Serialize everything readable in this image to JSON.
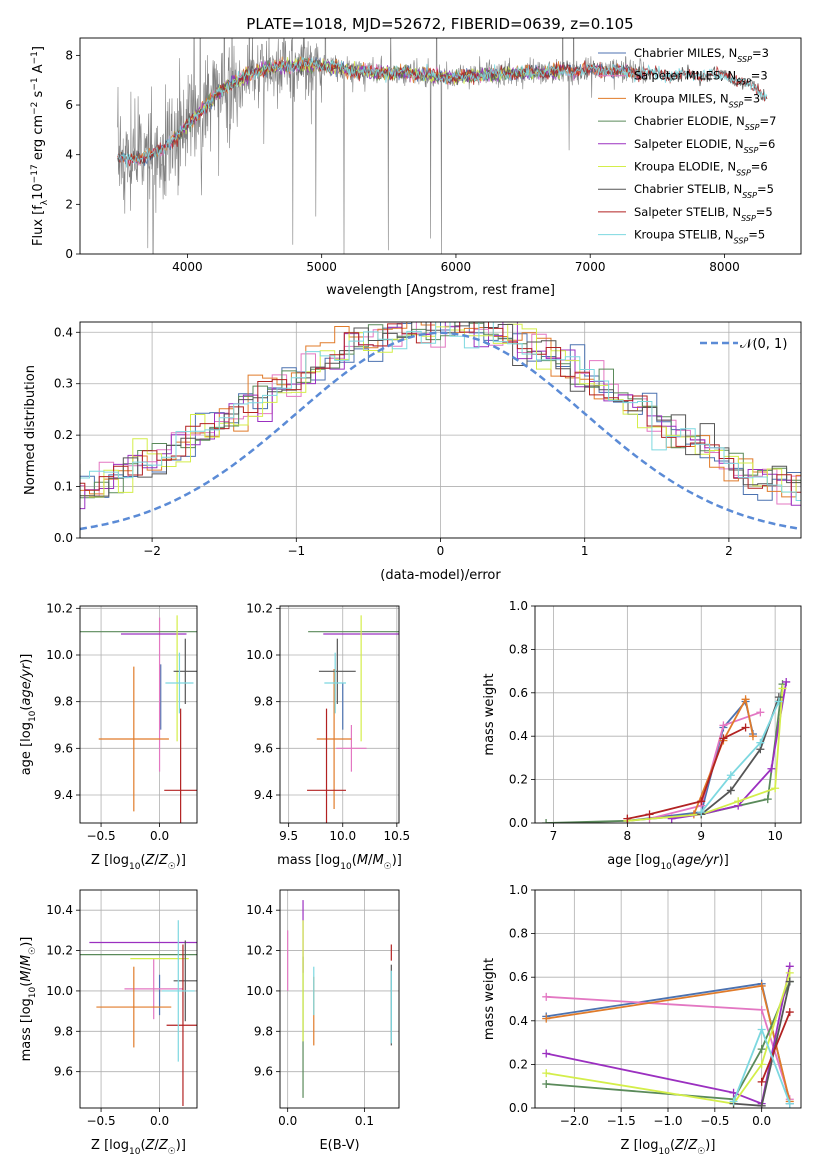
{
  "figure": {
    "title": "PLATE=1018, MJD=52672, FIBERID=0639, z=0.105"
  },
  "colors": {
    "Chabrier MILES": "#4c72b0",
    "Salpeter MILES": "#e377c2",
    "Kroupa MILES": "#e07b2a",
    "Chabrier ELODIE": "#5a8a5a",
    "Salpeter ELODIE": "#9b30c0",
    "Kroupa ELODIE": "#d4ee4a",
    "Chabrier STELIB": "#555555",
    "Salpeter STELIB": "#b22222",
    "Kroupa STELIB": "#7dd8e0",
    "data": "#808080",
    "gaussian": "#5b8bd6"
  },
  "chart_data": [
    {
      "id": "spectrum",
      "type": "line",
      "xlabel": "wavelength [Angstrom, rest frame]",
      "ylabel": "Flux [f_λ 10^-17 erg cm^-2 s^-1 A^-1]",
      "xlim": [
        3200,
        8570
      ],
      "ylim": [
        0,
        8.7
      ],
      "xticks": [
        4000,
        5000,
        6000,
        7000,
        8000
      ],
      "yticks": [
        0,
        2,
        4,
        6,
        8
      ],
      "grid": false,
      "legend_position": "upper-right",
      "legend": [
        {
          "name": "Chabrier MILES",
          "nssp": "3"
        },
        {
          "name": "Salpeter MILES",
          "nssp": "3"
        },
        {
          "name": "Kroupa MILES",
          "nssp": "3"
        },
        {
          "name": "Chabrier ELODIE",
          "nssp": "7"
        },
        {
          "name": "Salpeter ELODIE",
          "nssp": "6"
        },
        {
          "name": "Kroupa ELODIE",
          "nssp": "6"
        },
        {
          "name": "Chabrier STELIB",
          "nssp": "5"
        },
        {
          "name": "Salpeter STELIB",
          "nssp": "5"
        },
        {
          "name": "Kroupa STELIB",
          "nssp": "5"
        }
      ],
      "continuum": {
        "x": [
          3480,
          3550,
          3650,
          3750,
          3850,
          3950,
          4050,
          4150,
          4250,
          4400,
          4600,
          4800,
          5000,
          5200,
          5400,
          5600,
          5800,
          6000,
          6200,
          6400,
          6600,
          6800,
          7000,
          7200,
          7400,
          7600,
          7800,
          8000,
          8200,
          8300
        ],
        "y": [
          3.9,
          3.8,
          3.9,
          4.0,
          4.4,
          4.9,
          5.5,
          6.0,
          6.6,
          7.1,
          7.5,
          7.6,
          7.6,
          7.4,
          7.3,
          7.3,
          7.2,
          7.1,
          7.2,
          7.3,
          7.3,
          7.4,
          7.4,
          7.4,
          7.3,
          7.2,
          7.2,
          7.2,
          6.8,
          6.4
        ]
      }
    },
    {
      "id": "residuals",
      "type": "line",
      "xlabel": "(data-model)/error",
      "ylabel": "Normed distribution",
      "xlim": [
        -2.5,
        2.5
      ],
      "ylim": [
        0,
        0.42
      ],
      "xticks": [
        -2,
        -1,
        0,
        1,
        2
      ],
      "yticks": [
        0.0,
        0.1,
        0.2,
        0.3,
        0.4
      ],
      "grid": true,
      "legend_position": "upper-right",
      "legend": [
        {
          "name": "𝒩(0, 1)"
        }
      ],
      "gaussian": {
        "mean": 0,
        "sigma": 1
      }
    },
    {
      "id": "age_vs_Z",
      "type": "scatter",
      "xlabel": "Z [log10(Z/Z☉)]",
      "ylabel": "age  [log10(age/yr)]",
      "xlim": [
        -0.68,
        0.32
      ],
      "ylim": [
        9.28,
        10.21
      ],
      "xticks": [
        -0.5,
        0.0
      ],
      "yticks": [
        9.4,
        9.6,
        9.8,
        10.0,
        10.2
      ],
      "grid": true,
      "points": [
        {
          "model": "Chabrier MILES",
          "x": 0.01,
          "xerr": 0.0,
          "y": 9.82,
          "yerr": 0.14
        },
        {
          "model": "Salpeter MILES",
          "x": 0.0,
          "xerr": 0.0,
          "y": 9.83,
          "yerr": 0.33
        },
        {
          "model": "Kroupa MILES",
          "x": -0.22,
          "xerr": 0.3,
          "y": 9.64,
          "yerr": 0.31
        },
        {
          "model": "Chabrier ELODIE",
          "x": -0.2,
          "xerr": 0.52,
          "y": 10.1,
          "yerr": 0.0
        },
        {
          "model": "Salpeter ELODIE",
          "x": -0.05,
          "xerr": 0.28,
          "y": 10.09,
          "yerr": 0.0
        },
        {
          "model": "Kroupa ELODIE",
          "x": 0.15,
          "xerr": 0.0,
          "y": 9.9,
          "yerr": 0.27
        },
        {
          "model": "Chabrier STELIB",
          "x": 0.22,
          "xerr": 0.1,
          "y": 9.93,
          "yerr": 0.14
        },
        {
          "model": "Salpeter STELIB",
          "x": 0.18,
          "xerr": 0.14,
          "y": 9.42,
          "yerr": 0.35
        },
        {
          "model": "Kroupa STELIB",
          "x": 0.17,
          "xerr": 0.12,
          "y": 9.88,
          "yerr": 0.13
        }
      ]
    },
    {
      "id": "age_vs_mass",
      "type": "scatter",
      "xlabel": "mass [log10(M/M☉)]",
      "ylabel": "",
      "xlim": [
        9.42,
        10.52
      ],
      "ylim": [
        9.28,
        10.21
      ],
      "xticks": [
        9.5,
        10.0,
        10.5
      ],
      "yticks": [
        9.4,
        9.6,
        9.8,
        10.0,
        10.2
      ],
      "grid": true,
      "points": [
        {
          "model": "Chabrier MILES",
          "x": 10.0,
          "xerr": 0.0,
          "y": 9.78,
          "yerr": 0.1
        },
        {
          "model": "Salpeter MILES",
          "x": 10.08,
          "xerr": 0.14,
          "y": 9.6,
          "yerr": 0.1
        },
        {
          "model": "Kroupa MILES",
          "x": 9.92,
          "xerr": 0.16,
          "y": 9.64,
          "yerr": 0.3
        },
        {
          "model": "Chabrier ELODIE",
          "x": 10.1,
          "xerr": 0.42,
          "y": 10.1,
          "yerr": 0.0
        },
        {
          "model": "Salpeter ELODIE",
          "x": 10.22,
          "xerr": 0.4,
          "y": 10.09,
          "yerr": 0.0
        },
        {
          "model": "Kroupa ELODIE",
          "x": 10.17,
          "xerr": 0.0,
          "y": 9.9,
          "yerr": 0.27
        },
        {
          "model": "Chabrier STELIB",
          "x": 9.95,
          "xerr": 0.17,
          "y": 9.93,
          "yerr": 0.14
        },
        {
          "model": "Salpeter STELIB",
          "x": 9.85,
          "xerr": 0.18,
          "y": 9.42,
          "yerr": 0.35
        },
        {
          "model": "Kroupa STELIB",
          "x": 9.93,
          "xerr": 0.1,
          "y": 9.88,
          "yerr": 0.13
        }
      ]
    },
    {
      "id": "massweight_vs_age",
      "type": "line",
      "xlabel": "age  [log10(age/yr)]",
      "ylabel": "mass weight",
      "xlim": [
        6.75,
        10.35
      ],
      "ylim": [
        0.0,
        1.0
      ],
      "xticks": [
        7,
        8,
        9,
        10
      ],
      "yticks": [
        0.0,
        0.2,
        0.4,
        0.6,
        0.8,
        1.0
      ],
      "grid": true,
      "series": [
        {
          "name": "Chabrier MILES",
          "x": [
            8.0,
            9.0,
            9.3,
            9.6,
            9.7
          ],
          "y": [
            0.01,
            0.05,
            0.44,
            0.56,
            0.41
          ]
        },
        {
          "name": "Salpeter MILES",
          "x": [
            8.3,
            9.0,
            9.3,
            9.8
          ],
          "y": [
            0.02,
            0.08,
            0.45,
            0.51
          ]
        },
        {
          "name": "Kroupa MILES",
          "x": [
            8.9,
            9.3,
            9.6,
            9.7
          ],
          "y": [
            0.04,
            0.38,
            0.57,
            0.4
          ]
        },
        {
          "name": "Chabrier ELODIE",
          "x": [
            6.9,
            8.0,
            9.0,
            9.9,
            10.1
          ],
          "y": [
            0.0,
            0.01,
            0.04,
            0.11,
            0.64
          ]
        },
        {
          "name": "Salpeter ELODIE",
          "x": [
            8.6,
            9.0,
            9.5,
            9.95,
            10.15
          ],
          "y": [
            0.02,
            0.04,
            0.08,
            0.25,
            0.65
          ]
        },
        {
          "name": "Kroupa ELODIE",
          "x": [
            8.0,
            9.0,
            9.5,
            10.0,
            10.1
          ],
          "y": [
            0.01,
            0.04,
            0.1,
            0.16,
            0.62
          ]
        },
        {
          "name": "Chabrier STELIB",
          "x": [
            9.0,
            9.4,
            9.8,
            10.05
          ],
          "y": [
            0.04,
            0.15,
            0.34,
            0.58
          ]
        },
        {
          "name": "Salpeter STELIB",
          "x": [
            8.0,
            8.3,
            9.0,
            9.3,
            9.6
          ],
          "y": [
            0.02,
            0.04,
            0.1,
            0.39,
            0.44
          ]
        },
        {
          "name": "Kroupa STELIB",
          "x": [
            9.0,
            9.4,
            9.8,
            10.05
          ],
          "y": [
            0.05,
            0.22,
            0.37,
            0.56
          ]
        }
      ]
    },
    {
      "id": "mass_vs_Z",
      "type": "scatter",
      "xlabel": "Z [log10(Z/Z☉)]",
      "ylabel": "mass [log10(M/M☉)]",
      "xlim": [
        -0.68,
        0.32
      ],
      "ylim": [
        9.42,
        10.5
      ],
      "xticks": [
        -0.5,
        0.0
      ],
      "yticks": [
        9.6,
        9.8,
        10.0,
        10.2,
        10.4
      ],
      "grid": true,
      "points": [
        {
          "model": "Chabrier MILES",
          "x": 0.0,
          "xerr": 0.0,
          "y": 9.98,
          "yerr": 0.1
        },
        {
          "model": "Salpeter MILES",
          "x": -0.05,
          "xerr": 0.25,
          "y": 10.01,
          "yerr": 0.15
        },
        {
          "model": "Kroupa MILES",
          "x": -0.22,
          "xerr": 0.32,
          "y": 9.92,
          "yerr": 0.2
        },
        {
          "model": "Chabrier ELODIE",
          "x": -0.2,
          "xerr": 0.52,
          "y": 10.18,
          "yerr": 0.0
        },
        {
          "model": "Salpeter ELODIE",
          "x": -0.1,
          "xerr": 0.5,
          "y": 10.24,
          "yerr": 0.0
        },
        {
          "model": "Kroupa ELODIE",
          "x": 0.0,
          "xerr": 0.25,
          "y": 10.16,
          "yerr": 0.0
        },
        {
          "model": "Chabrier STELIB",
          "x": 0.22,
          "xerr": 0.1,
          "y": 10.05,
          "yerr": 0.2
        },
        {
          "model": "Salpeter STELIB",
          "x": 0.2,
          "xerr": 0.14,
          "y": 9.83,
          "yerr": 0.4
        },
        {
          "model": "Kroupa STELIB",
          "x": 0.16,
          "xerr": 0.14,
          "y": 10.0,
          "yerr": 0.35
        }
      ]
    },
    {
      "id": "mass_vs_EBV",
      "type": "scatter",
      "xlabel": "E(B-V)",
      "ylabel": "",
      "xlim": [
        -0.01,
        0.145
      ],
      "ylim": [
        9.42,
        10.5
      ],
      "xticks": [
        0.0,
        0.1
      ],
      "yticks": [
        9.6,
        9.8,
        10.0,
        10.2,
        10.4
      ],
      "grid": true,
      "points": [
        {
          "model": "Salpeter MILES",
          "x": 0.0,
          "yerr": 0.15,
          "y": 10.15
        },
        {
          "model": "Chabrier ELODIE",
          "x": 0.02,
          "yerr": 0.35,
          "y": 9.82
        },
        {
          "model": "Salpeter ELODIE",
          "x": 0.02,
          "yerr": 0.18,
          "y": 10.27
        },
        {
          "model": "Kroupa ELODIE",
          "x": 0.02,
          "yerr": 0.3,
          "y": 10.05
        },
        {
          "model": "Kroupa MILES",
          "x": 0.034,
          "yerr": 0.17,
          "y": 9.9
        },
        {
          "model": "Kroupa STELIB",
          "x": 0.034,
          "yerr": 0.12,
          "y": 10.0
        },
        {
          "model": "Salpeter STELIB",
          "x": 0.135,
          "yerr": 0.04,
          "y": 10.19
        },
        {
          "model": "Chabrier STELIB",
          "x": 0.135,
          "yerr": 0.2,
          "y": 9.93
        },
        {
          "model": "Kroupa STELIB",
          "x": 0.135,
          "yerr": 0.18,
          "y": 9.92
        }
      ]
    },
    {
      "id": "massweight_vs_Z",
      "type": "line",
      "xlabel": "Z [log10(Z/Z☉)]",
      "ylabel": "mass weight",
      "xlim": [
        -2.42,
        0.42
      ],
      "ylim": [
        0.0,
        1.0
      ],
      "xticks": [
        -2.0,
        -1.5,
        -1.0,
        -0.5,
        0.0
      ],
      "yticks": [
        0.0,
        0.2,
        0.4,
        0.6,
        0.8,
        1.0
      ],
      "grid": true,
      "series": [
        {
          "name": "Chabrier MILES",
          "x": [
            -2.3,
            0.0,
            0.3
          ],
          "y": [
            0.42,
            0.57,
            0.02
          ]
        },
        {
          "name": "Salpeter MILES",
          "x": [
            -2.3,
            0.0,
            0.3
          ],
          "y": [
            0.51,
            0.45,
            0.04
          ]
        },
        {
          "name": "Kroupa MILES",
          "x": [
            -2.3,
            0.0,
            0.3
          ],
          "y": [
            0.41,
            0.56,
            0.03
          ]
        },
        {
          "name": "Chabrier ELODIE",
          "x": [
            -2.3,
            -0.3,
            0.0,
            0.3
          ],
          "y": [
            0.11,
            0.04,
            0.27,
            0.58
          ]
        },
        {
          "name": "Salpeter ELODIE",
          "x": [
            -2.3,
            -0.3,
            0.0,
            0.3
          ],
          "y": [
            0.25,
            0.07,
            0.02,
            0.65
          ]
        },
        {
          "name": "Kroupa ELODIE",
          "x": [
            -2.3,
            -0.3,
            0.0,
            0.3
          ],
          "y": [
            0.16,
            0.02,
            0.2,
            0.62
          ]
        },
        {
          "name": "Chabrier STELIB",
          "x": [
            -0.3,
            0.0,
            0.3
          ],
          "y": [
            0.02,
            0.01,
            0.58
          ]
        },
        {
          "name": "Salpeter STELIB",
          "x": [
            0.0,
            0.3
          ],
          "y": [
            0.12,
            0.44
          ]
        },
        {
          "name": "Kroupa STELIB",
          "x": [
            -0.3,
            0.0,
            0.3
          ],
          "y": [
            0.03,
            0.36,
            0.02
          ]
        }
      ]
    }
  ]
}
